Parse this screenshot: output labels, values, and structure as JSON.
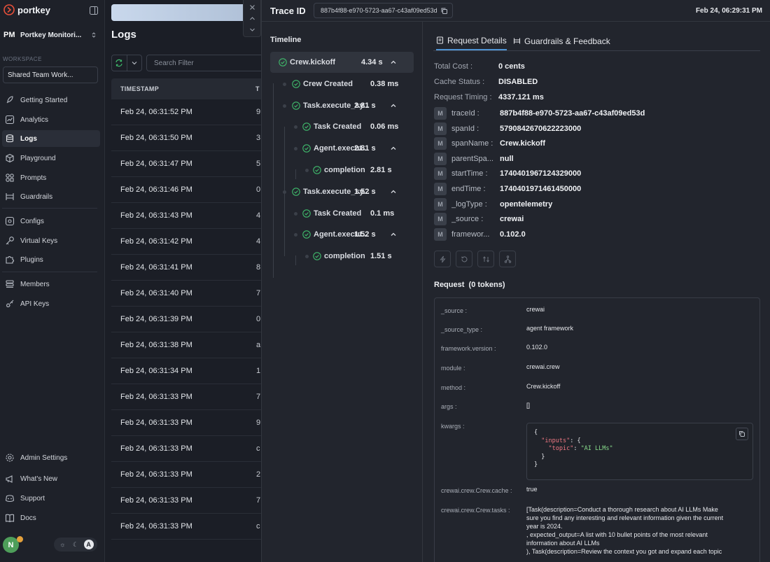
{
  "sidebar": {
    "brand": "portkey",
    "org": {
      "badge": "PM",
      "name": "Portkey Monitori..."
    },
    "workspace_label": "WORKSPACE",
    "workspace_value": "Shared Team Work...",
    "items": [
      {
        "label": "Getting Started",
        "icon": "rocket-icon"
      },
      {
        "label": "Analytics",
        "icon": "chart-icon"
      },
      {
        "label": "Logs",
        "icon": "database-icon"
      },
      {
        "label": "Playground",
        "icon": "cube-icon"
      },
      {
        "label": "Prompts",
        "icon": "prompts-icon"
      },
      {
        "label": "Guardrails",
        "icon": "guardrails-icon"
      },
      {
        "label": "Configs",
        "icon": "configs-icon"
      },
      {
        "label": "Virtual Keys",
        "icon": "key-icon"
      },
      {
        "label": "Plugins",
        "icon": "puzzle-icon"
      },
      {
        "label": "Members",
        "icon": "members-icon"
      },
      {
        "label": "API Keys",
        "icon": "api-key-icon"
      }
    ],
    "bottom_items": [
      {
        "label": "Admin Settings",
        "icon": "settings-icon"
      },
      {
        "label": "What's New",
        "icon": "megaphone-icon"
      },
      {
        "label": "Support",
        "icon": "discord-icon"
      },
      {
        "label": "Docs",
        "icon": "book-icon"
      }
    ],
    "avatar_initial": "N",
    "theme": {
      "system": "A"
    }
  },
  "logs": {
    "title": "Logs",
    "search_placeholder": "Search Filter",
    "columns": [
      "TIMESTAMP",
      "T"
    ],
    "rows": [
      {
        "ts": "Feb 24, 06:31:52 PM",
        "next": "9"
      },
      {
        "ts": "Feb 24, 06:31:50 PM",
        "next": "3"
      },
      {
        "ts": "Feb 24, 06:31:47 PM",
        "next": "5"
      },
      {
        "ts": "Feb 24, 06:31:46 PM",
        "next": "0"
      },
      {
        "ts": "Feb 24, 06:31:43 PM",
        "next": "4"
      },
      {
        "ts": "Feb 24, 06:31:42 PM",
        "next": "4"
      },
      {
        "ts": "Feb 24, 06:31:41 PM",
        "next": "8"
      },
      {
        "ts": "Feb 24, 06:31:40 PM",
        "next": "7"
      },
      {
        "ts": "Feb 24, 06:31:39 PM",
        "next": "0"
      },
      {
        "ts": "Feb 24, 06:31:38 PM",
        "next": "a"
      },
      {
        "ts": "Feb 24, 06:31:34 PM",
        "next": "1"
      },
      {
        "ts": "Feb 24, 06:31:33 PM",
        "next": "7"
      },
      {
        "ts": "Feb 24, 06:31:33 PM",
        "next": "9"
      },
      {
        "ts": "Feb 24, 06:31:33 PM",
        "next": "c"
      },
      {
        "ts": "Feb 24, 06:31:33 PM",
        "next": "2"
      },
      {
        "ts": "Feb 24, 06:31:33 PM",
        "next": "7"
      },
      {
        "ts": "Feb 24, 06:31:33 PM",
        "next": "c"
      }
    ]
  },
  "trace": {
    "label": "Trace ID",
    "id": "887b4f88-e970-5723-aa67-c43af09ed53d",
    "date": "Feb 24, 06:29:31 PM",
    "timeline_title": "Timeline",
    "timeline": [
      {
        "name": "Crew.kickoff",
        "duration": "4.34 s"
      },
      {
        "name": "Crew Created",
        "duration": "0.38 ms"
      },
      {
        "name": "Task.execute_sy...",
        "duration": "2.81 s"
      },
      {
        "name": "Task Created",
        "duration": "0.06 ms"
      },
      {
        "name": "Agent.execut...",
        "duration": "2.81 s"
      },
      {
        "name": "completion",
        "duration": "2.81 s"
      },
      {
        "name": "Task.execute_sy...",
        "duration": "1.52 s"
      },
      {
        "name": "Task Created",
        "duration": "0.1 ms"
      },
      {
        "name": "Agent.execut...",
        "duration": "1.52 s"
      },
      {
        "name": "completion",
        "duration": "1.51 s"
      }
    ],
    "tabs": [
      {
        "label": "Request Details",
        "active": true
      },
      {
        "label": "Guardrails & Feedback",
        "active": false
      }
    ],
    "summary": [
      {
        "key": "Total Cost :",
        "value": "0 cents"
      },
      {
        "key": "Cache Status :",
        "value": "DISABLED"
      },
      {
        "key": "Request Timing :",
        "value": "4337.121 ms"
      }
    ],
    "metadata_badge": "M",
    "metadata": [
      {
        "key": "traceId :",
        "value": "887b4f88-e970-5723-aa67-c43af09ed53d"
      },
      {
        "key": "spanId :",
        "value": "5790842670622223000"
      },
      {
        "key": "spanName :",
        "value": "Crew.kickoff"
      },
      {
        "key": "parentSpa...",
        "value": "null"
      },
      {
        "key": "startTime :",
        "value": "1740401967124329000"
      },
      {
        "key": "endTime :",
        "value": "1740401971461450000"
      },
      {
        "key": "_logType :",
        "value": "opentelemetry"
      },
      {
        "key": "_source :",
        "value": "crewai"
      },
      {
        "key": "framewor...",
        "value": "0.102.0"
      }
    ],
    "request_title": "Request",
    "request_tokens": "(0 tokens)",
    "request_fields": [
      {
        "key": "_source :",
        "value": "crewai"
      },
      {
        "key": "_source_type :",
        "value": "agent framework"
      },
      {
        "key": "framework.version :",
        "value": "0.102.0"
      },
      {
        "key": "module :",
        "value": "crewai.crew"
      },
      {
        "key": "method :",
        "value": "Crew.kickoff"
      },
      {
        "key": "args :",
        "value": "[]"
      },
      {
        "key": "kwargs :",
        "value": ""
      },
      {
        "key": "crewai.crew.Crew.cache :",
        "value": "true"
      },
      {
        "key": "crewai.crew.Crew.tasks :",
        "value": ""
      }
    ],
    "kwargs_json": {
      "inputs_key": "\"inputs\"",
      "topic_key": "\"topic\"",
      "topic_value": "\"AI LLMs\""
    },
    "tasks_lines": [
      "[Task(description=Conduct a thorough research about AI LLMs Make",
      "sure you find any interesting and relevant information given the current",
      "year is 2024.",
      ", expected_output=A list with 10 bullet points of the most relevant",
      "information about AI LLMs",
      "), Task(description=Review the context you got and expand each topic"
    ]
  },
  "colors": {
    "accent": "#4f94d4",
    "success": "#3fb96b",
    "brand_red": "#e8503a"
  }
}
